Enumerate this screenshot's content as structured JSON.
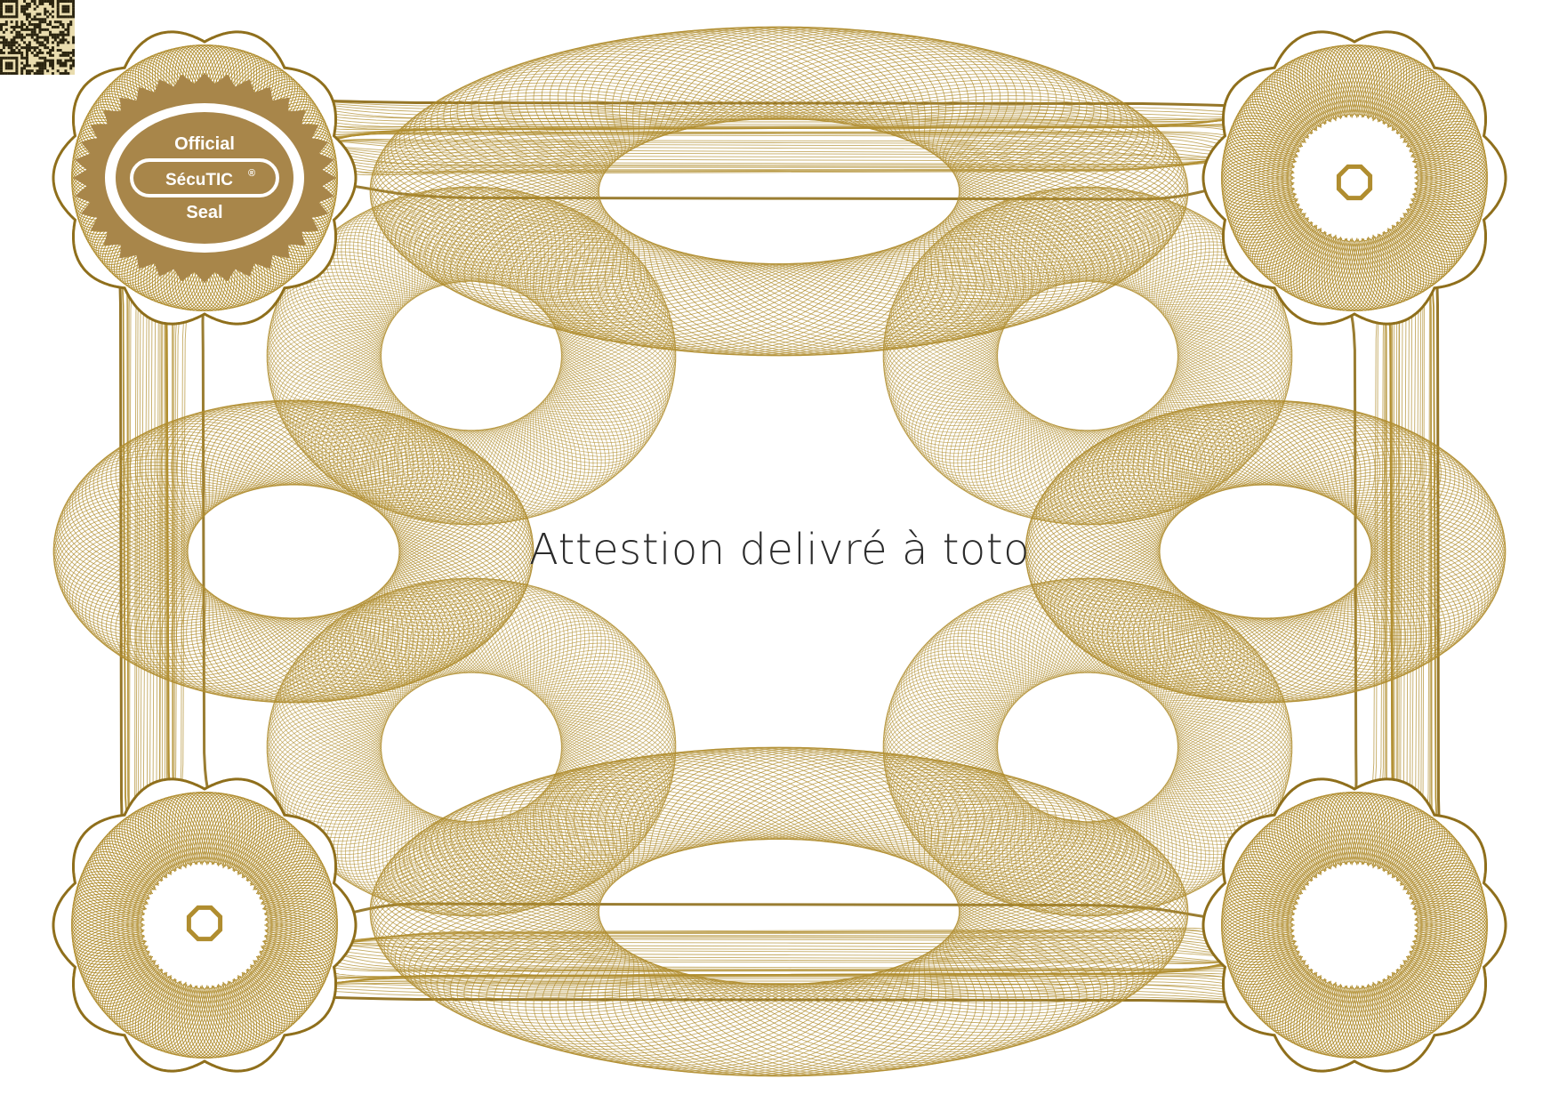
{
  "certificate": {
    "headline": "Attestion delivré à toto"
  },
  "seal": {
    "top_text": "Official",
    "brand": "SécuTIC",
    "registered_mark": "®",
    "bottom_text": "Seal"
  },
  "colors": {
    "guilloche": "#b08d2f",
    "guilloche_dark": "#8f6f1c",
    "seal_fill": "#a8864a",
    "seal_text": "#ffffff",
    "qr_dark": "#2a2410",
    "text": "#2b2b2b"
  },
  "icons": {
    "corner_top_left": "official-seal-icon",
    "corner_top_right": "octagon-ring-icon",
    "corner_bottom_left": "octagon-ring-icon",
    "corner_bottom_right": "qr-code-icon"
  }
}
